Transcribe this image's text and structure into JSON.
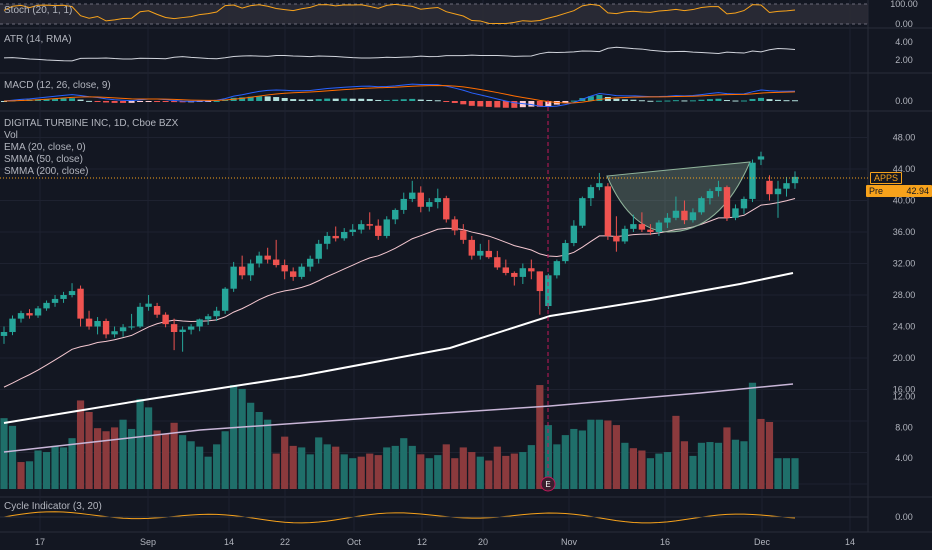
{
  "chart_data": {
    "type": "candlestick",
    "title": "DIGITAL TURBINE INC, 1D, Cboe BZX",
    "symbol": "APPS",
    "symbol_price": "",
    "pre_label": "Pre",
    "pre_price": "42.94",
    "indicators": {
      "vol": "Vol",
      "ema": "EMA (20, close, 0)",
      "smma50": "SMMA (50, close)",
      "smma200": "SMMA (200, close)",
      "stoch": "Stoch (20, 1, 1)",
      "atr": "ATR (14, RMA)",
      "macd": "MACD (12, 26, close, 9)",
      "cycle": "Cycle Indicator (3, 20)"
    },
    "price_axis": [
      "48.00",
      "44.00",
      "40.00",
      "36.00",
      "32.00",
      "28.00",
      "24.00",
      "20.00",
      "16.00",
      "12.00",
      "8.00",
      "4.00"
    ],
    "stoch_axis": [
      "100.00",
      "0.00"
    ],
    "atr_axis": [
      "4.00",
      "2.00"
    ],
    "macd_axis": [
      "0.00"
    ],
    "cycle_axis": [
      "0.00"
    ],
    "x_axis": [
      "17",
      "Sep",
      "14",
      "22",
      "Oct",
      "12",
      "20",
      "Nov",
      "16",
      "Dec",
      "14"
    ],
    "earnings_marker": "E",
    "candles": [
      [
        22.8,
        24.0,
        21.8,
        23.3
      ],
      [
        23.3,
        25.4,
        22.9,
        25.0
      ],
      [
        25.0,
        26.0,
        24.5,
        25.7
      ],
      [
        25.7,
        26.2,
        25.0,
        25.4
      ],
      [
        25.4,
        26.6,
        25.1,
        26.3
      ],
      [
        26.3,
        27.3,
        26.0,
        27.0
      ],
      [
        27.0,
        28.0,
        26.5,
        27.5
      ],
      [
        27.5,
        28.4,
        27.0,
        28.0
      ],
      [
        28.0,
        29.5,
        27.7,
        28.5
      ],
      [
        28.8,
        29.2,
        24.0,
        25.0
      ],
      [
        25.0,
        26.0,
        23.6,
        24.0
      ],
      [
        24.0,
        25.2,
        23.0,
        24.7
      ],
      [
        24.7,
        25.0,
        22.5,
        23.0
      ],
      [
        23.0,
        24.0,
        22.6,
        23.4
      ],
      [
        23.4,
        24.3,
        22.7,
        23.9
      ],
      [
        23.9,
        25.6,
        23.6,
        24.0
      ],
      [
        24.0,
        27.0,
        23.8,
        26.5
      ],
      [
        26.5,
        28.0,
        26.0,
        26.9
      ],
      [
        26.6,
        27.0,
        25.1,
        25.5
      ],
      [
        25.5,
        25.8,
        23.9,
        24.3
      ],
      [
        24.3,
        25.0,
        21.0,
        23.3
      ],
      [
        23.3,
        24.0,
        20.8,
        23.6
      ],
      [
        23.6,
        24.3,
        23.0,
        24.0
      ],
      [
        24.0,
        25.0,
        23.4,
        24.9
      ],
      [
        24.9,
        25.6,
        24.2,
        25.3
      ],
      [
        25.3,
        26.5,
        24.7,
        26.0
      ],
      [
        26.0,
        29.0,
        25.6,
        28.8
      ],
      [
        28.8,
        32.2,
        28.4,
        31.6
      ],
      [
        31.6,
        33.0,
        30.0,
        30.5
      ],
      [
        30.5,
        32.5,
        29.8,
        32.0
      ],
      [
        32.0,
        33.5,
        31.5,
        33.0
      ],
      [
        33.0,
        34.0,
        32.0,
        32.5
      ],
      [
        32.5,
        35.0,
        31.5,
        31.8
      ],
      [
        31.8,
        32.5,
        30.0,
        31.0
      ],
      [
        31.0,
        31.5,
        29.8,
        30.3
      ],
      [
        30.3,
        32.0,
        30.0,
        31.6
      ],
      [
        31.6,
        33.0,
        31.0,
        32.6
      ],
      [
        32.6,
        35.0,
        32.0,
        34.5
      ],
      [
        34.5,
        36.0,
        33.8,
        35.5
      ],
      [
        35.5,
        36.7,
        34.8,
        35.2
      ],
      [
        35.2,
        36.5,
        34.9,
        36.0
      ],
      [
        36.0,
        37.0,
        35.5,
        36.3
      ],
      [
        36.3,
        37.5,
        35.8,
        37.0
      ],
      [
        37.0,
        38.5,
        36.3,
        36.8
      ],
      [
        36.8,
        37.6,
        35.0,
        35.5
      ],
      [
        35.5,
        38.0,
        35.2,
        37.6
      ],
      [
        37.6,
        39.0,
        37.0,
        38.8
      ],
      [
        38.8,
        41.0,
        38.3,
        40.2
      ],
      [
        40.2,
        42.5,
        39.8,
        41.0
      ],
      [
        41.0,
        41.8,
        38.5,
        39.2
      ],
      [
        39.2,
        40.3,
        38.6,
        39.8
      ],
      [
        39.8,
        41.5,
        39.0,
        40.3
      ],
      [
        40.3,
        40.6,
        37.2,
        37.6
      ],
      [
        37.6,
        38.0,
        35.6,
        36.2
      ],
      [
        36.2,
        37.0,
        34.5,
        35.0
      ],
      [
        35.0,
        35.5,
        32.5,
        33.0
      ],
      [
        33.0,
        34.5,
        32.5,
        33.6
      ],
      [
        33.6,
        35.0,
        32.6,
        32.8
      ],
      [
        32.8,
        33.6,
        31.2,
        31.5
      ],
      [
        31.5,
        32.5,
        30.5,
        30.8
      ],
      [
        30.8,
        31.0,
        29.2,
        30.3
      ],
      [
        30.3,
        32.0,
        29.4,
        31.4
      ],
      [
        31.4,
        32.5,
        30.0,
        31.0
      ],
      [
        31.0,
        31.0,
        25.5,
        28.5
      ],
      [
        26.6,
        30.7,
        26.2,
        30.5
      ],
      [
        30.5,
        32.5,
        30.1,
        32.3
      ],
      [
        32.3,
        35.0,
        32.0,
        34.6
      ],
      [
        34.6,
        37.5,
        34.2,
        36.8
      ],
      [
        36.8,
        40.5,
        36.5,
        40.3
      ],
      [
        40.3,
        42.0,
        39.3,
        41.7
      ],
      [
        41.7,
        43.5,
        41.3,
        42.2
      ],
      [
        41.8,
        42.2,
        35.0,
        35.5
      ],
      [
        35.5,
        38.0,
        33.5,
        34.8
      ],
      [
        34.8,
        36.8,
        34.5,
        36.4
      ],
      [
        36.4,
        38.2,
        36.0,
        37.0
      ],
      [
        37.0,
        38.5,
        36.0,
        36.3
      ],
      [
        36.3,
        37.0,
        35.6,
        36.0
      ],
      [
        36.0,
        37.5,
        35.5,
        37.2
      ],
      [
        37.2,
        38.4,
        36.5,
        37.8
      ],
      [
        37.8,
        40.5,
        37.5,
        38.7
      ],
      [
        38.7,
        40.0,
        37.0,
        37.5
      ],
      [
        37.5,
        39.0,
        37.2,
        38.5
      ],
      [
        38.5,
        40.5,
        38.2,
        40.3
      ],
      [
        40.3,
        41.5,
        39.5,
        41.2
      ],
      [
        41.2,
        42.5,
        40.5,
        41.7
      ],
      [
        41.7,
        41.9,
        37.4,
        37.8
      ],
      [
        37.8,
        39.5,
        37.5,
        39.0
      ],
      [
        39.0,
        40.5,
        38.3,
        40.2
      ],
      [
        40.2,
        45.2,
        39.8,
        44.8
      ],
      [
        45.2,
        46.2,
        44.5,
        45.6
      ],
      [
        42.5,
        43.2,
        40.0,
        40.8
      ],
      [
        40.8,
        42.5,
        37.8,
        41.5
      ],
      [
        41.5,
        43.0,
        40.5,
        42.2
      ],
      [
        42.2,
        43.7,
        41.5,
        43.0
      ]
    ],
    "volume": [
      [
        9.2,
        1
      ],
      [
        8.2,
        1
      ],
      [
        3.5,
        0
      ],
      [
        3.6,
        1
      ],
      [
        5.0,
        1
      ],
      [
        4.8,
        1
      ],
      [
        5.6,
        1
      ],
      [
        5.4,
        1
      ],
      [
        6.6,
        1
      ],
      [
        11.5,
        0
      ],
      [
        10.0,
        0
      ],
      [
        7.9,
        0
      ],
      [
        7.5,
        0
      ],
      [
        8.0,
        0
      ],
      [
        9.0,
        1
      ],
      [
        7.8,
        1
      ],
      [
        11.7,
        1
      ],
      [
        10.6,
        1
      ],
      [
        7.6,
        0
      ],
      [
        7.2,
        0
      ],
      [
        8.6,
        0
      ],
      [
        7.0,
        1
      ],
      [
        6.2,
        1
      ],
      [
        5.5,
        1
      ],
      [
        4.2,
        1
      ],
      [
        5.8,
        1
      ],
      [
        7.5,
        1
      ],
      [
        13.5,
        1
      ],
      [
        13.0,
        1
      ],
      [
        11.2,
        1
      ],
      [
        10.0,
        1
      ],
      [
        9.0,
        1
      ],
      [
        4.6,
        0
      ],
      [
        6.8,
        0
      ],
      [
        5.6,
        0
      ],
      [
        5.4,
        1
      ],
      [
        4.5,
        1
      ],
      [
        6.7,
        1
      ],
      [
        5.8,
        1
      ],
      [
        5.5,
        0
      ],
      [
        4.5,
        1
      ],
      [
        4.0,
        1
      ],
      [
        4.2,
        0
      ],
      [
        4.6,
        0
      ],
      [
        4.4,
        0
      ],
      [
        5.4,
        1
      ],
      [
        5.6,
        1
      ],
      [
        6.6,
        1
      ],
      [
        5.6,
        1
      ],
      [
        4.5,
        0
      ],
      [
        4.0,
        1
      ],
      [
        4.4,
        1
      ],
      [
        5.8,
        0
      ],
      [
        4.0,
        0
      ],
      [
        5.4,
        0
      ],
      [
        4.8,
        0
      ],
      [
        4.2,
        1
      ],
      [
        3.7,
        0
      ],
      [
        5.5,
        0
      ],
      [
        4.3,
        0
      ],
      [
        4.6,
        0
      ],
      [
        4.8,
        1
      ],
      [
        5.7,
        1
      ],
      [
        13.5,
        0
      ],
      [
        8.3,
        1
      ],
      [
        5.8,
        1
      ],
      [
        7.0,
        1
      ],
      [
        7.8,
        1
      ],
      [
        7.6,
        1
      ],
      [
        9.0,
        1
      ],
      [
        9.0,
        1
      ],
      [
        8.9,
        0
      ],
      [
        8.3,
        0
      ],
      [
        6.0,
        1
      ],
      [
        5.3,
        0
      ],
      [
        5.0,
        0
      ],
      [
        4.0,
        1
      ],
      [
        4.6,
        1
      ],
      [
        4.8,
        1
      ],
      [
        9.5,
        0
      ],
      [
        6.2,
        0
      ],
      [
        4.3,
        1
      ],
      [
        6.0,
        1
      ],
      [
        6.1,
        1
      ],
      [
        6.0,
        1
      ],
      [
        8.0,
        0
      ],
      [
        6.4,
        1
      ],
      [
        6.2,
        1
      ],
      [
        13.8,
        1
      ],
      [
        9.1,
        0
      ],
      [
        8.7,
        0
      ],
      [
        4.0,
        1
      ],
      [
        4.0,
        1
      ],
      [
        4.0,
        1
      ]
    ]
  }
}
